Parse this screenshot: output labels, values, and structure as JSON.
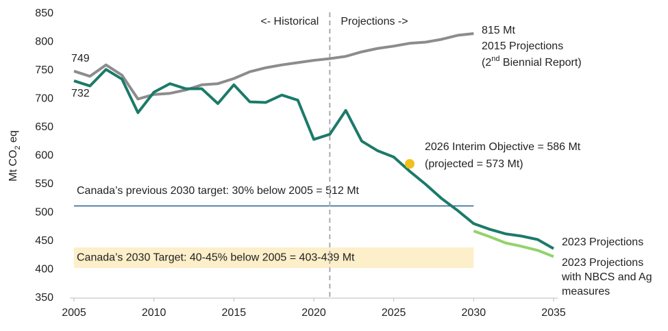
{
  "chart_data": {
    "type": "line",
    "ylabel": [
      "Mt CO",
      "2",
      " eq"
    ],
    "x": [
      2005,
      2006,
      2007,
      2008,
      2009,
      2010,
      2011,
      2012,
      2013,
      2014,
      2015,
      2016,
      2017,
      2018,
      2019,
      2020,
      2021,
      2022,
      2023,
      2024,
      2025,
      2026,
      2027,
      2028,
      2029,
      2030,
      2031,
      2032,
      2033,
      2034,
      2035
    ],
    "xlim": [
      2005,
      2035
    ],
    "xticks": [
      2005,
      2010,
      2015,
      2020,
      2025,
      2030,
      2035
    ],
    "ylim": [
      350,
      850
    ],
    "yticks": [
      350,
      400,
      450,
      500,
      550,
      600,
      650,
      700,
      750,
      800,
      850
    ],
    "grid": false,
    "series": [
      {
        "name": "2015 Projections",
        "name_note": [
          "(2",
          "nd",
          " Biennial Report)"
        ],
        "color": "#8c8c8c",
        "values": [
          749,
          740,
          760,
          742,
          700,
          708,
          710,
          716,
          725,
          727,
          736,
          748,
          755,
          760,
          764,
          768,
          771,
          775,
          783,
          789,
          793,
          798,
          800,
          805,
          812,
          815,
          null,
          null,
          null,
          null,
          null
        ],
        "value_labels": [
          "749",
          null,
          null,
          null,
          null,
          null,
          null,
          null,
          null,
          null,
          null,
          null,
          null,
          null,
          null,
          null,
          null,
          null,
          null,
          null,
          null,
          null,
          null,
          null,
          null,
          "815 Mt",
          null,
          null,
          null,
          null,
          null
        ]
      },
      {
        "name": "2023 Projections",
        "color": "#1b7a69",
        "values": [
          732,
          723,
          752,
          735,
          676,
          712,
          727,
          718,
          718,
          692,
          725,
          695,
          694,
          707,
          698,
          629,
          638,
          680,
          626,
          609,
          598,
          573,
          550,
          525,
          504,
          481,
          471,
          463,
          459,
          453,
          437
        ],
        "value_labels": [
          "732",
          null,
          null,
          null,
          null,
          null,
          null,
          null,
          null,
          null,
          null,
          null,
          null,
          null,
          null,
          null,
          null,
          null,
          null,
          null,
          null,
          null,
          null,
          null,
          null,
          null,
          null,
          null,
          null,
          null,
          null
        ]
      },
      {
        "name": "2023 Projections with NBCS and Ag measures",
        "color": "#92d36a",
        "values": [
          null,
          null,
          null,
          null,
          null,
          null,
          null,
          null,
          null,
          null,
          null,
          null,
          null,
          null,
          null,
          null,
          null,
          null,
          null,
          null,
          null,
          null,
          null,
          null,
          null,
          468,
          458,
          447,
          441,
          434,
          423
        ]
      }
    ],
    "divider": {
      "x": 2021,
      "left_label": "<- Historical",
      "right_label": "Projections ->"
    },
    "reference_line": {
      "value": 512,
      "from": 2005,
      "to": 2030,
      "color": "#1f5f8b",
      "label": "Canada’s previous 2030 target: 30% below 2005 = 512 Mt"
    },
    "band": {
      "low": 403,
      "high": 439,
      "from": 2005,
      "to": 2030,
      "color": "#fcefc9",
      "label": "Canada’s 2030 Target: 40-45% below 2005 = 403-439 Mt"
    },
    "point": {
      "x": 2026,
      "y": 586,
      "color": "#f2c01e",
      "label": "2026 Interim Objective = 586 Mt",
      "sublabel": "(projected = 573 Mt)"
    }
  }
}
